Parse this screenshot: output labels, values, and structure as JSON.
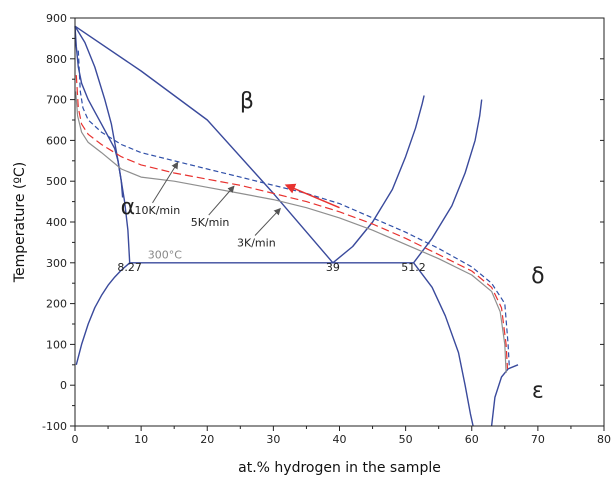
{
  "chart_data": {
    "type": "line",
    "xlabel": "at.% hydrogen in the sample",
    "ylabel": "Temperature (ºC)",
    "xlim": [
      0,
      80
    ],
    "ylim": [
      -100,
      900
    ],
    "x_ticks": [
      0,
      10,
      20,
      30,
      40,
      50,
      60,
      70,
      80
    ],
    "y_ticks": [
      -100,
      0,
      100,
      200,
      300,
      400,
      500,
      600,
      700,
      800,
      900
    ],
    "grid": false,
    "phase_labels": [
      {
        "text": "α",
        "x": 8,
        "y": 420
      },
      {
        "text": "β",
        "x": 26,
        "y": 680
      },
      {
        "text": "δ",
        "x": 70,
        "y": 250
      },
      {
        "text": "ε",
        "x": 70,
        "y": -30
      }
    ],
    "annotations": [
      {
        "text": "300°C",
        "x": 11,
        "y": 310,
        "style": "gray"
      },
      {
        "text": "8.27",
        "x": 8.27,
        "y": 280,
        "style": "plain"
      },
      {
        "text": "39",
        "x": 39,
        "y": 280,
        "style": "plain"
      },
      {
        "text": "51.2",
        "x": 51.2,
        "y": 280,
        "style": "plain"
      }
    ],
    "rate_labels": [
      {
        "text": "10K/min",
        "label_at": [
          9,
          420
        ],
        "arrow_to": [
          15.5,
          545
        ]
      },
      {
        "text": "5K/min",
        "label_at": [
          17.5,
          390
        ],
        "arrow_to": [
          24,
          487
        ]
      },
      {
        "text": "3K/min",
        "label_at": [
          24.5,
          340
        ],
        "arrow_to": [
          31,
          432
        ]
      }
    ],
    "direction_arrow": {
      "from": [
        40,
        435
      ],
      "to": [
        32,
        490
      ],
      "color": "#e8322f"
    },
    "series": [
      {
        "role": "phase-boundary",
        "color": "#3a4a9c",
        "style": "solid",
        "points": [
          [
            0,
            880
          ],
          [
            0.2,
            830
          ],
          [
            0.5,
            780
          ],
          [
            1,
            740
          ],
          [
            2,
            700
          ],
          [
            3,
            670
          ],
          [
            4,
            640
          ],
          [
            5,
            610
          ],
          [
            6,
            580
          ],
          [
            6.5,
            550
          ],
          [
            7,
            500
          ],
          [
            7.2,
            460
          ]
        ]
      },
      {
        "role": "phase-boundary",
        "color": "#3a4a9c",
        "style": "solid",
        "points": [
          [
            0,
            880
          ],
          [
            1.5,
            840
          ],
          [
            3,
            780
          ],
          [
            4.5,
            700
          ],
          [
            5.5,
            640
          ],
          [
            6.5,
            550
          ],
          [
            7.5,
            450
          ],
          [
            8,
            380
          ],
          [
            8.27,
            300
          ]
        ]
      },
      {
        "role": "phase-boundary",
        "color": "#3a4a9c",
        "style": "solid",
        "points": [
          [
            0.2,
            50
          ],
          [
            1,
            100
          ],
          [
            2,
            150
          ],
          [
            3,
            190
          ],
          [
            4,
            220
          ],
          [
            5,
            245
          ],
          [
            6,
            265
          ],
          [
            7,
            282
          ],
          [
            8.27,
            300
          ]
        ]
      },
      {
        "role": "phase-boundary",
        "color": "#3a4a9c",
        "style": "solid",
        "points": [
          [
            0,
            880
          ],
          [
            10,
            770
          ],
          [
            20,
            650
          ],
          [
            30,
            470
          ],
          [
            39,
            300
          ]
        ]
      },
      {
        "role": "phase-boundary",
        "color": "#3a4a9c",
        "style": "solid",
        "points": [
          [
            8.27,
            300
          ],
          [
            51.2,
            300
          ]
        ]
      },
      {
        "role": "phase-boundary",
        "color": "#3a4a9c",
        "style": "solid",
        "points": [
          [
            39,
            300
          ],
          [
            42,
            340
          ],
          [
            45,
            400
          ],
          [
            48,
            480
          ],
          [
            50,
            560
          ],
          [
            51.5,
            630
          ],
          [
            52.5,
            690
          ],
          [
            52.8,
            710
          ]
        ]
      },
      {
        "role": "phase-boundary",
        "color": "#3a4a9c",
        "style": "solid",
        "points": [
          [
            51.2,
            300
          ],
          [
            54,
            360
          ],
          [
            57,
            440
          ],
          [
            59,
            520
          ],
          [
            60.5,
            600
          ],
          [
            61.2,
            660
          ],
          [
            61.5,
            700
          ]
        ]
      },
      {
        "role": "phase-boundary",
        "color": "#3a4a9c",
        "style": "solid",
        "points": [
          [
            51.2,
            300
          ],
          [
            54,
            240
          ],
          [
            56,
            170
          ],
          [
            58,
            80
          ],
          [
            59,
            0
          ],
          [
            59.8,
            -70
          ],
          [
            60.2,
            -100
          ]
        ]
      },
      {
        "role": "phase-boundary",
        "color": "#3a4a9c",
        "style": "solid",
        "points": [
          [
            63,
            -100
          ],
          [
            63.5,
            -30
          ],
          [
            64.5,
            20
          ],
          [
            65.5,
            40
          ],
          [
            67,
            50
          ]
        ]
      },
      {
        "role": "cooling-10K",
        "color": "#2f4fa8",
        "style": "dashed",
        "points": [
          [
            0.5,
            820
          ],
          [
            0.8,
            720
          ],
          [
            1.2,
            680
          ],
          [
            2,
            650
          ],
          [
            4,
            620
          ],
          [
            7,
            590
          ],
          [
            10,
            570
          ],
          [
            15,
            550
          ],
          [
            20,
            530
          ],
          [
            25,
            510
          ],
          [
            30,
            490
          ],
          [
            35,
            470
          ],
          [
            40,
            445
          ],
          [
            45,
            410
          ],
          [
            50,
            375
          ],
          [
            55,
            335
          ],
          [
            60,
            290
          ],
          [
            63,
            250
          ],
          [
            65,
            200
          ],
          [
            65.5,
            100
          ],
          [
            65.7,
            40
          ]
        ]
      },
      {
        "role": "cooling-5K",
        "color": "#e8322f",
        "style": "dashed",
        "points": [
          [
            0.2,
            760
          ],
          [
            0.5,
            680
          ],
          [
            1,
            640
          ],
          [
            2,
            615
          ],
          [
            4,
            590
          ],
          [
            7,
            560
          ],
          [
            10,
            540
          ],
          [
            15,
            520
          ],
          [
            20,
            505
          ],
          [
            25,
            490
          ],
          [
            30,
            470
          ],
          [
            35,
            450
          ],
          [
            40,
            425
          ],
          [
            45,
            395
          ],
          [
            50,
            360
          ],
          [
            55,
            320
          ],
          [
            60,
            280
          ],
          [
            63,
            240
          ],
          [
            64.5,
            190
          ],
          [
            65.2,
            100
          ],
          [
            65.4,
            40
          ]
        ]
      },
      {
        "role": "cooling-3K",
        "color": "#8f8f8f",
        "style": "solid",
        "points": [
          [
            0.1,
            720
          ],
          [
            0.4,
            660
          ],
          [
            1,
            620
          ],
          [
            2,
            595
          ],
          [
            4,
            570
          ],
          [
            7,
            530
          ],
          [
            10,
            510
          ],
          [
            15,
            500
          ],
          [
            20,
            485
          ],
          [
            25,
            470
          ],
          [
            30,
            455
          ],
          [
            35,
            435
          ],
          [
            40,
            410
          ],
          [
            45,
            380
          ],
          [
            50,
            345
          ],
          [
            55,
            310
          ],
          [
            60,
            270
          ],
          [
            63,
            230
          ],
          [
            64.3,
            180
          ],
          [
            65,
            100
          ],
          [
            65.2,
            30
          ]
        ]
      }
    ]
  }
}
